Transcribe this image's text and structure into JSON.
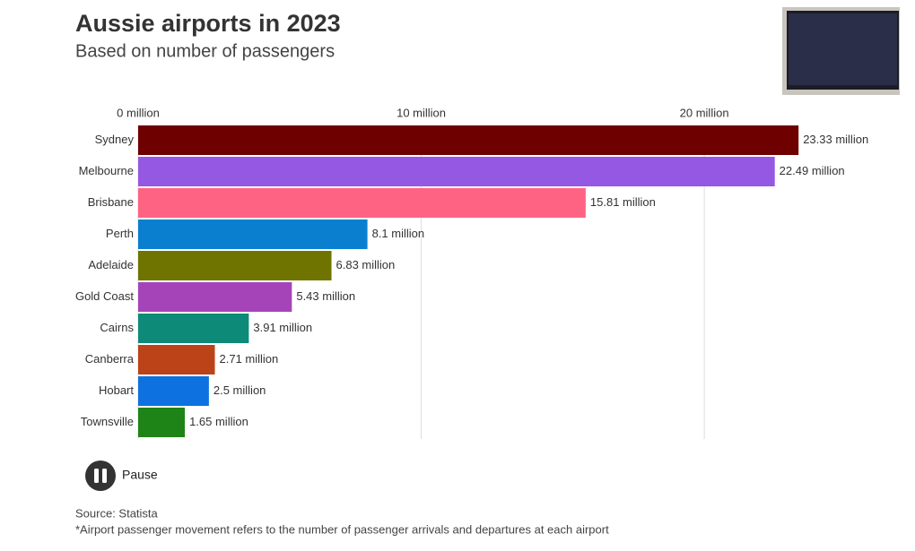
{
  "chart_data": {
    "type": "bar",
    "orientation": "horizontal",
    "title": "Aussie airports in 2023",
    "subtitle": "Based on number of passengers",
    "categories": [
      "Sydney",
      "Melbourne",
      "Brisbane",
      "Perth",
      "Adelaide",
      "Gold Coast",
      "Cairns",
      "Canberra",
      "Hobart",
      "Townsville"
    ],
    "values": [
      23.33,
      22.49,
      15.81,
      8.1,
      6.83,
      5.43,
      3.91,
      2.71,
      2.5,
      1.65
    ],
    "value_labels": [
      "23.33 million",
      "22.49 million",
      "15.81 million",
      "8.1 million",
      "6.83 million",
      "5.43 million",
      "3.91 million",
      "2.71 million",
      "2.5 million",
      "1.65 million"
    ],
    "colors": [
      "#6e0000",
      "#9558e3",
      "#ff6384",
      "#0a7fcf",
      "#6f7400",
      "#a544b9",
      "#0e8a79",
      "#bc4218",
      "#0d72e0",
      "#1f8417"
    ],
    "xlim": [
      0,
      27
    ],
    "xticks": [
      {
        "value": 0,
        "label": "0 million"
      },
      {
        "value": 10,
        "label": "10 million"
      },
      {
        "value": 20,
        "label": "20 million"
      }
    ],
    "grid": true,
    "control": "Pause",
    "source": "Source: Statista",
    "note": "*Airport passenger movement refers to the number of passenger arrivals and departures at each airport"
  }
}
